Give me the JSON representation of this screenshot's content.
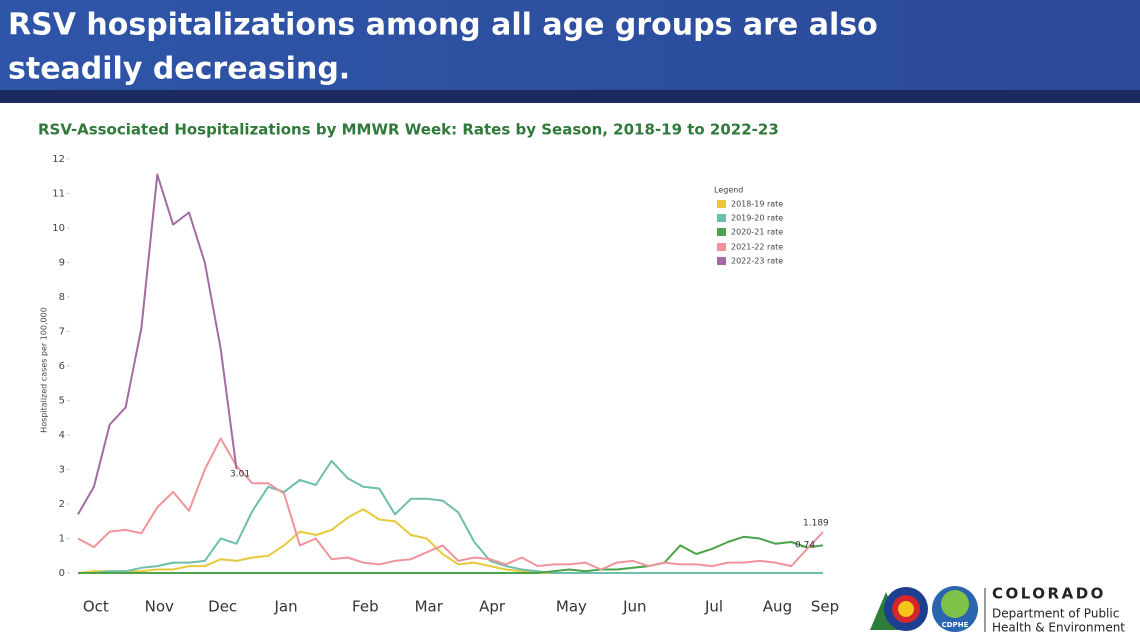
{
  "header": {
    "title_line1": "RSV hospitalizations among all age groups are also",
    "title_line2": "steadily decreasing."
  },
  "chart_data": {
    "type": "line",
    "title": "RSV-Associated Hospitalizations by MMWR Week: Rates by Season, 2018-19 to 2022-23",
    "y_label": "Hospitalized cases per 100,000",
    "legend_title": "Legend",
    "legend": "top-right",
    "grid": false,
    "ylim": [
      0,
      12
    ],
    "yticks": [
      0,
      1,
      2,
      3,
      4,
      5,
      6,
      7,
      8,
      9,
      10,
      11,
      12
    ],
    "categories": [
      null,
      "Oct",
      null,
      null,
      null,
      "Nov",
      null,
      null,
      null,
      "Dec",
      null,
      null,
      null,
      "Jan",
      null,
      null,
      null,
      null,
      "Feb",
      null,
      null,
      null,
      "Mar",
      null,
      null,
      null,
      "Apr",
      null,
      null,
      null,
      null,
      "May",
      null,
      null,
      null,
      "Jun",
      null,
      null,
      null,
      null,
      "Jul",
      null,
      null,
      null,
      "Aug",
      null,
      null,
      "Sep"
    ],
    "annotations": [
      "3.01",
      "1.189",
      "0.74"
    ],
    "series": [
      {
        "name": "2018-19 rate",
        "color": "#e8c93c",
        "values": [
          0,
          0.05,
          0.05,
          0.05,
          0.05,
          0.1,
          0.1,
          0.2,
          0.2,
          0.4,
          0.35,
          0.45,
          0.5,
          0.8,
          1.2,
          1.1,
          1.25,
          1.6,
          1.85,
          1.55,
          1.5,
          1.1,
          1.0,
          0.55,
          0.25,
          0.3,
          0.2,
          0.1,
          0.05,
          0,
          0,
          0,
          0,
          0,
          0,
          0,
          0,
          0,
          0,
          0,
          0,
          0,
          0,
          0,
          0,
          0,
          0,
          0
        ]
      },
      {
        "name": "2019-20 rate",
        "color": "#6dbfac",
        "values": [
          0,
          0,
          0.05,
          0.05,
          0.15,
          0.2,
          0.3,
          0.3,
          0.35,
          1.0,
          0.85,
          1.8,
          2.5,
          2.35,
          2.7,
          2.55,
          3.25,
          2.75,
          2.5,
          2.45,
          1.7,
          2.15,
          2.15,
          2.1,
          1.75,
          0.9,
          0.35,
          0.2,
          0.1,
          0.05,
          0,
          0,
          0,
          0,
          0,
          0,
          0,
          0,
          0,
          0,
          0,
          0,
          0,
          0,
          0,
          0,
          0,
          0
        ]
      },
      {
        "name": "2020-21 rate",
        "color": "#4ba34b",
        "values": [
          0,
          0,
          0,
          0,
          0,
          0,
          0,
          0,
          0,
          0,
          0,
          0,
          0,
          0,
          0,
          0,
          0,
          0,
          0,
          0,
          0,
          0,
          0,
          0,
          0,
          0,
          0,
          0,
          0,
          0,
          0.05,
          0.1,
          0.05,
          0.1,
          0.1,
          0.15,
          0.2,
          0.3,
          0.8,
          0.55,
          0.7,
          0.9,
          1.05,
          1.0,
          0.85,
          0.9,
          0.74,
          0.8
        ]
      },
      {
        "name": "2021-22 rate",
        "color": "#f0949b",
        "values": [
          1.0,
          0.75,
          1.2,
          1.25,
          1.15,
          1.9,
          2.35,
          1.8,
          3.0,
          3.9,
          3.1,
          2.6,
          2.6,
          2.3,
          0.8,
          1.0,
          0.4,
          0.45,
          0.3,
          0.25,
          0.35,
          0.4,
          0.6,
          0.8,
          0.35,
          0.45,
          0.4,
          0.25,
          0.45,
          0.2,
          0.25,
          0.25,
          0.3,
          0.1,
          0.3,
          0.35,
          0.2,
          0.3,
          0.25,
          0.25,
          0.2,
          0.3,
          0.3,
          0.35,
          0.3,
          0.2,
          0.7,
          1.189
        ]
      },
      {
        "name": "2022-23 rate",
        "color": "#a46aa3",
        "values": [
          1.7,
          2.5,
          4.3,
          4.8,
          7.1,
          11.55,
          10.1,
          10.45,
          9.0,
          6.5,
          3.01,
          null,
          null,
          null,
          null,
          null,
          null,
          null,
          null,
          null,
          null,
          null,
          null,
          null,
          null,
          null,
          null,
          null,
          null,
          null,
          null,
          null,
          null,
          null,
          null,
          null,
          null,
          null,
          null,
          null,
          null,
          null,
          null,
          null,
          null,
          null,
          null,
          null
        ]
      }
    ]
  },
  "logo": {
    "name": "COLORADO",
    "line1": "Department of Public",
    "line2": "Health & Environment",
    "badge": "CDPHE"
  }
}
